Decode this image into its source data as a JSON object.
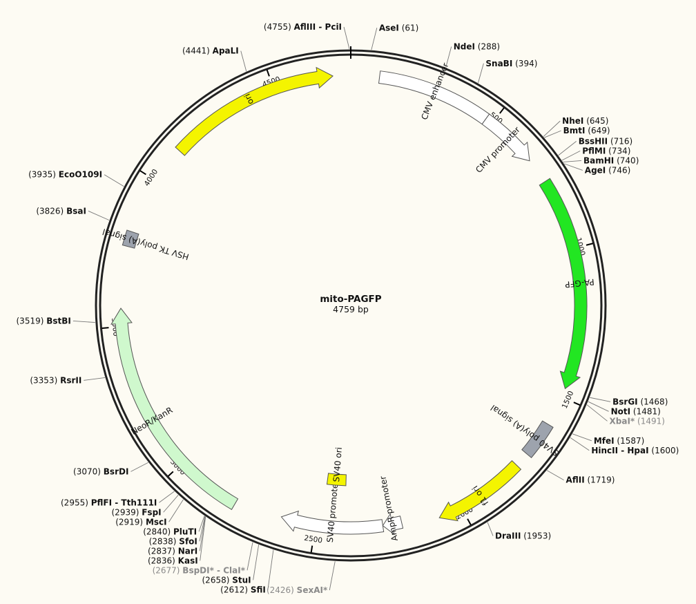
{
  "plasmid": {
    "name": "mito-PAGFP",
    "length_label": "4759 bp"
  },
  "colors": {
    "background": "#fdfbf3",
    "backbone": "#222222",
    "origin": "#f4f400",
    "gfp": "#22e622",
    "neo": "#cff8cd",
    "promoter": "#ffffff",
    "polyA": "#9da3ad"
  },
  "ticks": [
    {
      "bp": 500,
      "label": "500"
    },
    {
      "bp": 1000,
      "label": "1000"
    },
    {
      "bp": 1500,
      "label": "1500"
    },
    {
      "bp": 2000,
      "label": "2000"
    },
    {
      "bp": 2500,
      "label": "2500"
    },
    {
      "bp": 3000,
      "label": "3000"
    },
    {
      "bp": 3500,
      "label": "3500"
    },
    {
      "bp": 4000,
      "label": "4000"
    },
    {
      "bp": 4500,
      "label": "4500"
    }
  ],
  "features": [
    {
      "name": "CMV enhancer",
      "start": 95,
      "end": 475,
      "color": "promoter",
      "arrow": false,
      "label": "CMV enhancer"
    },
    {
      "name": "CMV promoter",
      "start": 475,
      "end": 675,
      "color": "promoter",
      "arrow": true,
      "label": "CMV promoter"
    },
    {
      "name": "PA-GFP",
      "start": 760,
      "end": 1470,
      "color": "gfp",
      "arrow": true,
      "label": "PA-GFP"
    },
    {
      "name": "SV40 poly(A) signal",
      "start": 1600,
      "end": 1720,
      "color": "polyA",
      "arrow": false,
      "label": "SV40 poly(A) signal"
    },
    {
      "name": "f1 ori",
      "start": 1770,
      "end": 2080,
      "color": "origin",
      "arrow": true,
      "label": "f1 ori"
    },
    {
      "name": "AmpR promoter",
      "start": 2205,
      "end": 2270,
      "color": "promoter",
      "arrow": true,
      "label": "AmpR promoter"
    },
    {
      "name": "SV40 promoter",
      "start": 2270,
      "end": 2620,
      "color": "promoter",
      "arrow": true,
      "label": "SV40 promoter"
    },
    {
      "name": "SV40 ori",
      "start": 2400,
      "end": 2480,
      "color": "origin",
      "arrow": false,
      "label": "SV40 ori"
    },
    {
      "name": "NeoR/KanR",
      "start": 2780,
      "end": 3560,
      "color": "neo",
      "arrow": true,
      "label": "NeoR/KanR"
    },
    {
      "name": "HSV TK poly(A) signal",
      "start": 3765,
      "end": 3815,
      "color": "polyA",
      "arrow": false,
      "label": "HSV TK poly(A) signal"
    },
    {
      "name": "ori",
      "start": 4125,
      "end": 4700,
      "color": "origin",
      "arrow": true,
      "label": "ori"
    }
  ],
  "sites": [
    {
      "name": "AflIII - PciI",
      "pos": "(4755)",
      "bp": 4755
    },
    {
      "name": "AseI",
      "pos": "(61)",
      "bp": 61
    },
    {
      "name": "NdeI",
      "pos": "(288)",
      "bp": 288
    },
    {
      "name": "SnaBI",
      "pos": "(394)",
      "bp": 394
    },
    {
      "name": "NheI",
      "pos": "(645)",
      "bp": 645
    },
    {
      "name": "BmtI",
      "pos": "(649)",
      "bp": 649
    },
    {
      "name": "BssHII",
      "pos": "(716)",
      "bp": 716
    },
    {
      "name": "PflMI",
      "pos": "(734)",
      "bp": 734
    },
    {
      "name": "BamHI",
      "pos": "(740)",
      "bp": 740
    },
    {
      "name": "AgeI",
      "pos": "(746)",
      "bp": 746
    },
    {
      "name": "BsrGI",
      "pos": "(1468)",
      "bp": 1468
    },
    {
      "name": "NotI",
      "pos": "(1481)",
      "bp": 1481
    },
    {
      "name": "XbaI*",
      "pos": "(1491)",
      "bp": 1491,
      "gray": true
    },
    {
      "name": "MfeI",
      "pos": "(1587)",
      "bp": 1587
    },
    {
      "name": "HincII - HpaI",
      "pos": "(1600)",
      "bp": 1600
    },
    {
      "name": "AflII",
      "pos": "(1719)",
      "bp": 1719
    },
    {
      "name": "DraIII",
      "pos": "(1953)",
      "bp": 1953
    },
    {
      "name": "SexAI*",
      "pos": "(2426)",
      "bp": 2426,
      "gray": true
    },
    {
      "name": "SfiI",
      "pos": "(2612)",
      "bp": 2612
    },
    {
      "name": "StuI",
      "pos": "(2658)",
      "bp": 2658
    },
    {
      "name": "BspDI* - ClaI*",
      "pos": "(2677)",
      "bp": 2677,
      "gray": true
    },
    {
      "name": "KasI",
      "pos": "(2836)",
      "bp": 2836
    },
    {
      "name": "NarI",
      "pos": "(2837)",
      "bp": 2837
    },
    {
      "name": "SfoI",
      "pos": "(2838)",
      "bp": 2838
    },
    {
      "name": "PluTI",
      "pos": "(2840)",
      "bp": 2840
    },
    {
      "name": "MscI",
      "pos": "(2919)",
      "bp": 2919
    },
    {
      "name": "FspI",
      "pos": "(2939)",
      "bp": 2939
    },
    {
      "name": "PflFI - Tth111I",
      "pos": "(2955)",
      "bp": 2955
    },
    {
      "name": "BsrDI",
      "pos": "(3070)",
      "bp": 3070
    },
    {
      "name": "RsrII",
      "pos": "(3353)",
      "bp": 3353
    },
    {
      "name": "BstBI",
      "pos": "(3519)",
      "bp": 3519
    },
    {
      "name": "BsaI",
      "pos": "(3826)",
      "bp": 3826
    },
    {
      "name": "EcoO109I",
      "pos": "(3935)",
      "bp": 3935
    },
    {
      "name": "ApaLI",
      "pos": "(4441)",
      "bp": 4441
    }
  ]
}
